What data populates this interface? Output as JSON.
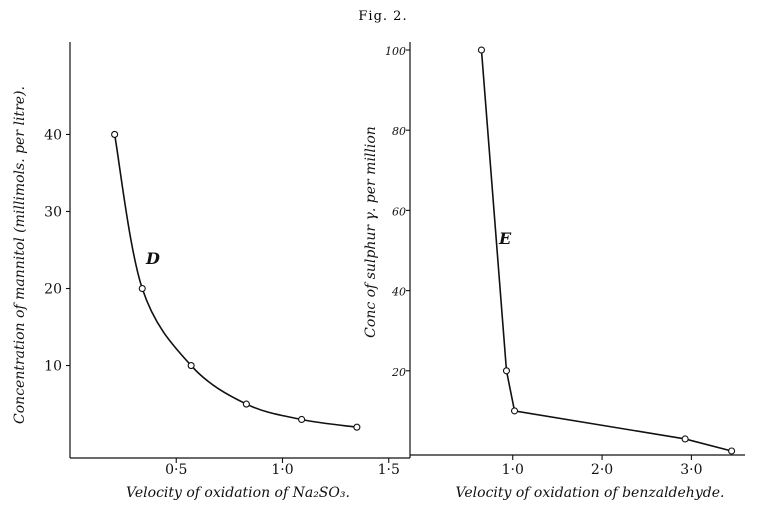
{
  "figure_title": "Fig. 2.",
  "chart_data": [
    {
      "type": "line",
      "panel_label": "D",
      "xlabel": "Velocity of oxidation of Na₂SO₃.",
      "ylabel": "Concentration of mannitol (millimols. per litre).",
      "x_ticks": [
        "0·5",
        "1·0",
        "1·5"
      ],
      "x_tick_values": [
        0.5,
        1.0,
        1.5
      ],
      "y_ticks": [
        "10",
        "20",
        "30",
        "40"
      ],
      "y_tick_values": [
        10,
        20,
        30,
        40
      ],
      "xlim": [
        0.0,
        1.6
      ],
      "ylim": [
        -2,
        52
      ],
      "series": [
        {
          "x": [
            0.21,
            0.34,
            0.57,
            0.83,
            1.09,
            1.35
          ],
          "y": [
            40,
            20,
            10,
            5,
            3,
            2
          ]
        }
      ],
      "grid": false,
      "marker": "open-circle"
    },
    {
      "type": "line",
      "panel_label": "E",
      "xlabel": "Velocity of oxidation of benzaldehyde.",
      "ylabel": "Conc of sulphur γ. per million",
      "x_ticks": [
        "1·0",
        "2·0",
        "3·0"
      ],
      "x_tick_values": [
        1.0,
        2.0,
        3.0
      ],
      "y_ticks": [
        "20",
        "40",
        "60",
        "80",
        "100"
      ],
      "y_tick_values": [
        20,
        40,
        60,
        80,
        100
      ],
      "xlim": [
        -0.15,
        3.6
      ],
      "ylim": [
        -1,
        102
      ],
      "series": [
        {
          "x": [
            0.65,
            0.93,
            1.02,
            2.93,
            3.45
          ],
          "y": [
            100,
            20,
            10,
            3,
            0
          ]
        }
      ],
      "grid": false,
      "marker": "open-circle"
    }
  ]
}
